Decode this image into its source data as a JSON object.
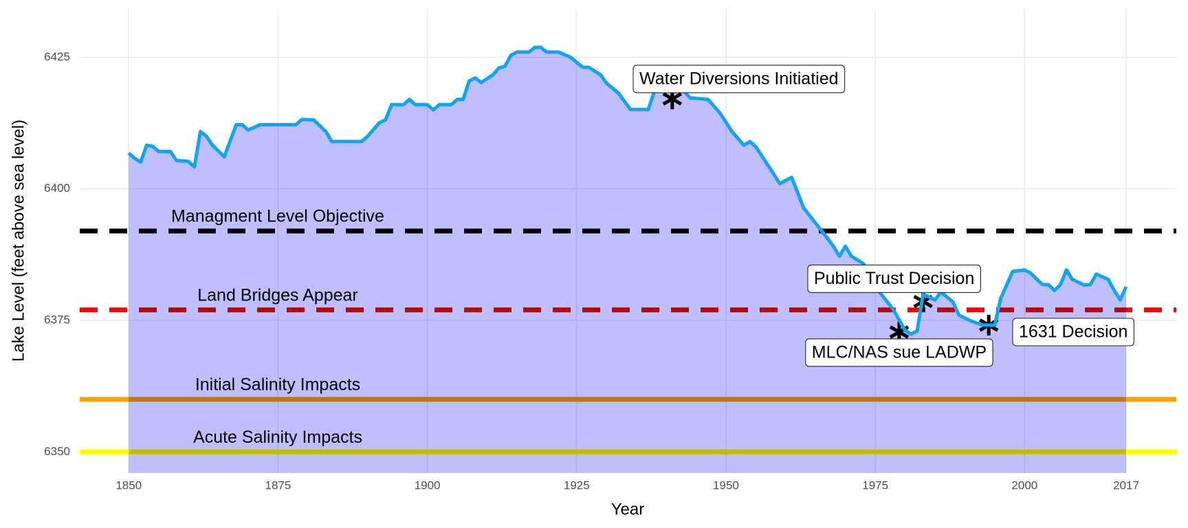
{
  "chart_data": {
    "type": "area-line",
    "x_label": "Year",
    "y_label": "Lake Level (feet above sea level)",
    "x": [
      1850,
      1851,
      1852,
      1853,
      1854,
      1855,
      1857,
      1858,
      1860,
      1861,
      1862,
      1863,
      1864,
      1866,
      1868,
      1869,
      1870,
      1872,
      1878,
      1879,
      1881,
      1883,
      1884,
      1889,
      1890,
      1892,
      1893,
      1894,
      1896,
      1897,
      1898,
      1900,
      1901,
      1902,
      1904,
      1905,
      1906,
      1907,
      1908,
      1909,
      1911,
      1912,
      1913,
      1914,
      1915,
      1917,
      1918,
      1919,
      1920,
      1922,
      1924,
      1926,
      1927,
      1929,
      1930,
      1932,
      1934,
      1937,
      1938,
      1940,
      1943,
      1944,
      1947,
      1949,
      1951,
      1953,
      1954,
      1955,
      1958,
      1959,
      1961,
      1963,
      1967,
      1968,
      1969,
      1970,
      1971,
      1973,
      1975,
      1978,
      1980,
      1981,
      1982,
      1983,
      1985,
      1986,
      1988,
      1989,
      1991,
      1993,
      1995,
      1996,
      1998,
      2000,
      2001,
      2003,
      2004,
      2005,
      2006,
      2007,
      2008,
      2010,
      2011,
      2012,
      2014,
      2015,
      2016,
      2017
    ],
    "values": [
      6406.8,
      6405.8,
      6405.1,
      6408.3,
      6408.1,
      6407.1,
      6407.1,
      6405.4,
      6405.2,
      6404.2,
      6410.9,
      6410,
      6408.3,
      6406.1,
      6412.2,
      6412.2,
      6411.2,
      6412.2,
      6412.2,
      6413.2,
      6413.1,
      6410.9,
      6409,
      6409,
      6410,
      6412.6,
      6413.1,
      6416,
      6416,
      6417,
      6416,
      6416,
      6415,
      6416,
      6416,
      6417,
      6417,
      6420.5,
      6421.1,
      6420.2,
      6421.7,
      6423,
      6423.3,
      6425.4,
      6426,
      6426,
      6426.9,
      6426.9,
      6426,
      6426,
      6425,
      6423.1,
      6423.1,
      6421.7,
      6420.1,
      6418.2,
      6415.1,
      6415.1,
      6418.5,
      6418.8,
      6418.5,
      6417.3,
      6417,
      6414.4,
      6410.9,
      6408.3,
      6409,
      6408,
      6402.8,
      6401,
      6402.2,
      6396.4,
      6390.6,
      6389.1,
      6387.2,
      6389.1,
      6387.2,
      6385.8,
      6381.4,
      6377.1,
      6373.1,
      6372.4,
      6373,
      6380,
      6378.9,
      6380.4,
      6378.5,
      6376,
      6374.9,
      6374.1,
      6374.1,
      6379.2,
      6384.3,
      6384.6,
      6384,
      6381.8,
      6381.8,
      6380.7,
      6381.8,
      6384.6,
      6382.8,
      6381.7,
      6381.8,
      6383.8,
      6382.8,
      6380.7,
      6378.9,
      6381.4
    ],
    "color": "#12a4f0",
    "area_color": "#bfbfff",
    "xlim": [
      1841.8,
      2025.4
    ],
    "ylim": [
      6346,
      6434.2
    ],
    "xticks": [
      1850,
      1875,
      1900,
      1925,
      1950,
      1975,
      2000,
      2017
    ],
    "yticks": [
      6350,
      6375,
      6400,
      6425
    ],
    "grid": true,
    "hlines": [
      {
        "value": 6392,
        "label": "Managment Level Objective",
        "color": "#000000",
        "dashed": true
      },
      {
        "value": 6377,
        "label": "Land Bridges Appear",
        "color": "#ff0000",
        "dashed": true
      },
      {
        "value": 6360,
        "label": "Initial Salinity Impacts",
        "color": "#ffa000",
        "dashed": false
      },
      {
        "value": 6350,
        "label": "Acute Salinity Impacts",
        "color": "#ffff00",
        "dashed": false
      }
    ],
    "annotations": [
      {
        "x": 1941,
        "y": 6417.1,
        "label": "Water Diversions Initiatied"
      },
      {
        "x": 1979,
        "y": 6372.8,
        "label": "MLC/NAS sue LADWP"
      },
      {
        "x": 1983,
        "y": 6378.6,
        "label": "Public Trust Decision"
      },
      {
        "x": 1994,
        "y": 6374.1,
        "label": "1631 Decision"
      }
    ]
  }
}
